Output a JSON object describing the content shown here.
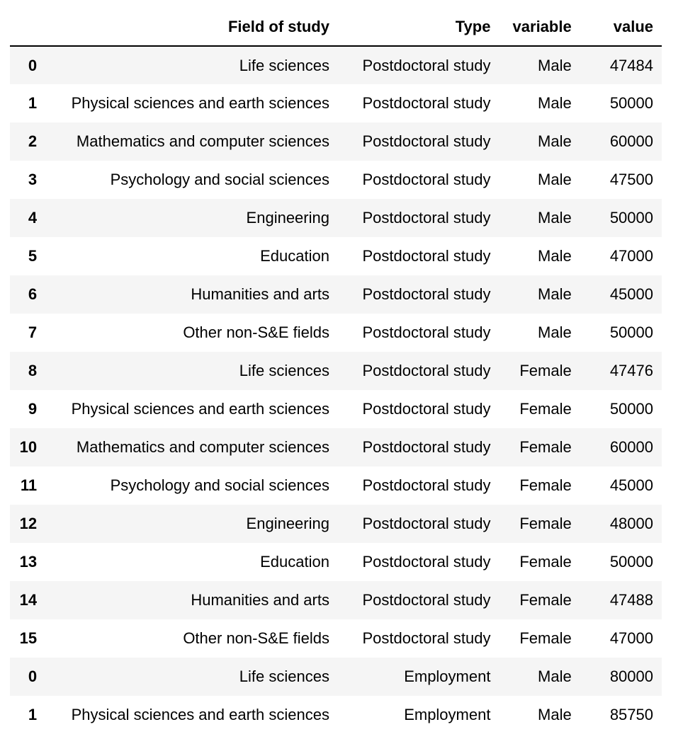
{
  "columns": [
    "",
    "Field of study",
    "Type",
    "variable",
    "value"
  ],
  "rows": [
    {
      "index": "0",
      "field": "Life sciences",
      "type": "Postdoctoral study",
      "variable": "Male",
      "value": "47484"
    },
    {
      "index": "1",
      "field": "Physical sciences and earth sciences",
      "type": "Postdoctoral study",
      "variable": "Male",
      "value": "50000"
    },
    {
      "index": "2",
      "field": "Mathematics and computer sciences",
      "type": "Postdoctoral study",
      "variable": "Male",
      "value": "60000"
    },
    {
      "index": "3",
      "field": "Psychology and social sciences",
      "type": "Postdoctoral study",
      "variable": "Male",
      "value": "47500"
    },
    {
      "index": "4",
      "field": "Engineering",
      "type": "Postdoctoral study",
      "variable": "Male",
      "value": "50000"
    },
    {
      "index": "5",
      "field": "Education",
      "type": "Postdoctoral study",
      "variable": "Male",
      "value": "47000"
    },
    {
      "index": "6",
      "field": "Humanities and arts",
      "type": "Postdoctoral study",
      "variable": "Male",
      "value": "45000"
    },
    {
      "index": "7",
      "field": "Other non-S&E fields",
      "type": "Postdoctoral study",
      "variable": "Male",
      "value": "50000"
    },
    {
      "index": "8",
      "field": "Life sciences",
      "type": "Postdoctoral study",
      "variable": "Female",
      "value": "47476"
    },
    {
      "index": "9",
      "field": "Physical sciences and earth sciences",
      "type": "Postdoctoral study",
      "variable": "Female",
      "value": "50000"
    },
    {
      "index": "10",
      "field": "Mathematics and computer sciences",
      "type": "Postdoctoral study",
      "variable": "Female",
      "value": "60000"
    },
    {
      "index": "11",
      "field": "Psychology and social sciences",
      "type": "Postdoctoral study",
      "variable": "Female",
      "value": "45000"
    },
    {
      "index": "12",
      "field": "Engineering",
      "type": "Postdoctoral study",
      "variable": "Female",
      "value": "48000"
    },
    {
      "index": "13",
      "field": "Education",
      "type": "Postdoctoral study",
      "variable": "Female",
      "value": "50000"
    },
    {
      "index": "14",
      "field": "Humanities and arts",
      "type": "Postdoctoral study",
      "variable": "Female",
      "value": "47488"
    },
    {
      "index": "15",
      "field": "Other non-S&E fields",
      "type": "Postdoctoral study",
      "variable": "Female",
      "value": "47000"
    },
    {
      "index": "0",
      "field": "Life sciences",
      "type": "Employment",
      "variable": "Male",
      "value": "80000"
    },
    {
      "index": "1",
      "field": "Physical sciences and earth sciences",
      "type": "Employment",
      "variable": "Male",
      "value": "85750"
    }
  ]
}
